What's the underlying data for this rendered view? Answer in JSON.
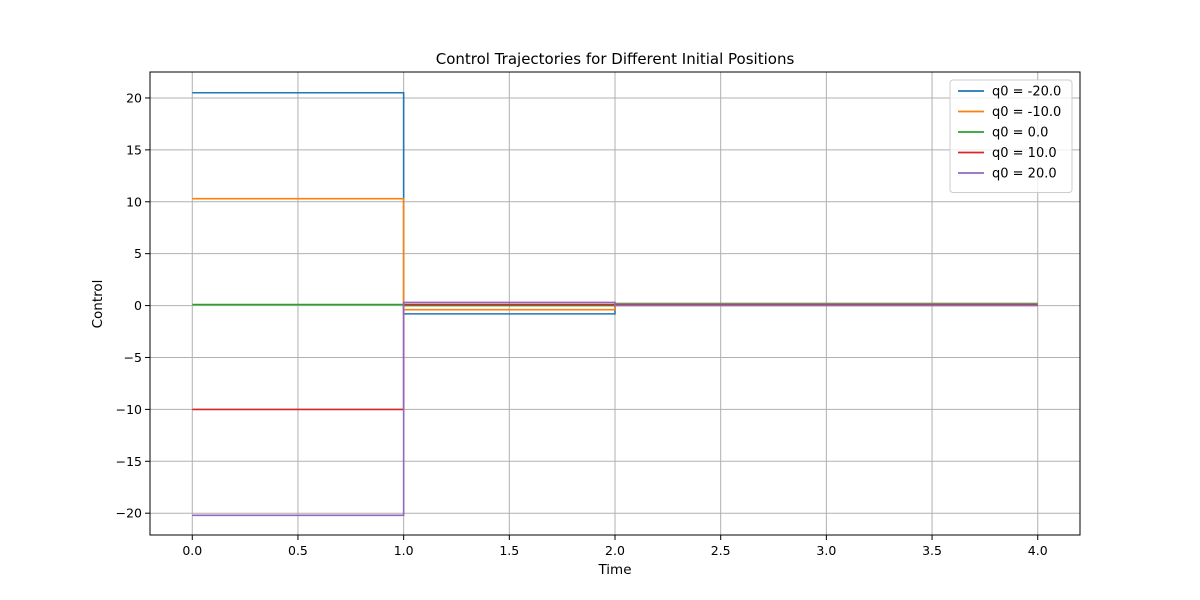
{
  "chart_data": {
    "type": "line",
    "step": true,
    "title": "Control Trajectories for Different Initial Positions",
    "xlabel": "Time",
    "ylabel": "Control",
    "xlim": [
      -0.2,
      4.2
    ],
    "ylim": [
      -22.1,
      22.5
    ],
    "xticks": [
      0.0,
      0.5,
      1.0,
      1.5,
      2.0,
      2.5,
      3.0,
      3.5,
      4.0
    ],
    "xtick_labels": [
      "0.0",
      "0.5",
      "1.0",
      "1.5",
      "2.0",
      "2.5",
      "3.0",
      "3.5",
      "4.0"
    ],
    "yticks": [
      -20,
      -15,
      -10,
      -5,
      0,
      5,
      10,
      15,
      20
    ],
    "ytick_labels": [
      "−20",
      "−15",
      "−10",
      "−5",
      "0",
      "5",
      "10",
      "15",
      "20"
    ],
    "grid": true,
    "legend_position": "top-right",
    "series": [
      {
        "name": "q0 = -20.0",
        "color": "#1f77b4",
        "x": [
          0,
          1,
          1,
          2,
          2,
          4
        ],
        "y": [
          20.5,
          20.5,
          -0.8,
          -0.8,
          0.2,
          0.2
        ]
      },
      {
        "name": "q0 = -10.0",
        "color": "#ff7f0e",
        "x": [
          0,
          1,
          1,
          2,
          2,
          4
        ],
        "y": [
          10.3,
          10.3,
          -0.4,
          -0.4,
          0.15,
          0.15
        ]
      },
      {
        "name": "q0 = 0.0",
        "color": "#2ca02c",
        "x": [
          0,
          1,
          1,
          2,
          2,
          4
        ],
        "y": [
          0.1,
          0.1,
          0.0,
          0.0,
          0.1,
          0.1
        ]
      },
      {
        "name": "q0 = 10.0",
        "color": "#d62728",
        "x": [
          0,
          1,
          1,
          2,
          2,
          4
        ],
        "y": [
          -10.0,
          -10.0,
          0.1,
          0.1,
          0.05,
          0.05
        ]
      },
      {
        "name": "q0 = 20.0",
        "color": "#9467bd",
        "x": [
          0,
          1,
          1,
          2,
          2,
          4
        ],
        "y": [
          -20.2,
          -20.2,
          0.3,
          0.3,
          0.0,
          0.0
        ]
      }
    ]
  }
}
